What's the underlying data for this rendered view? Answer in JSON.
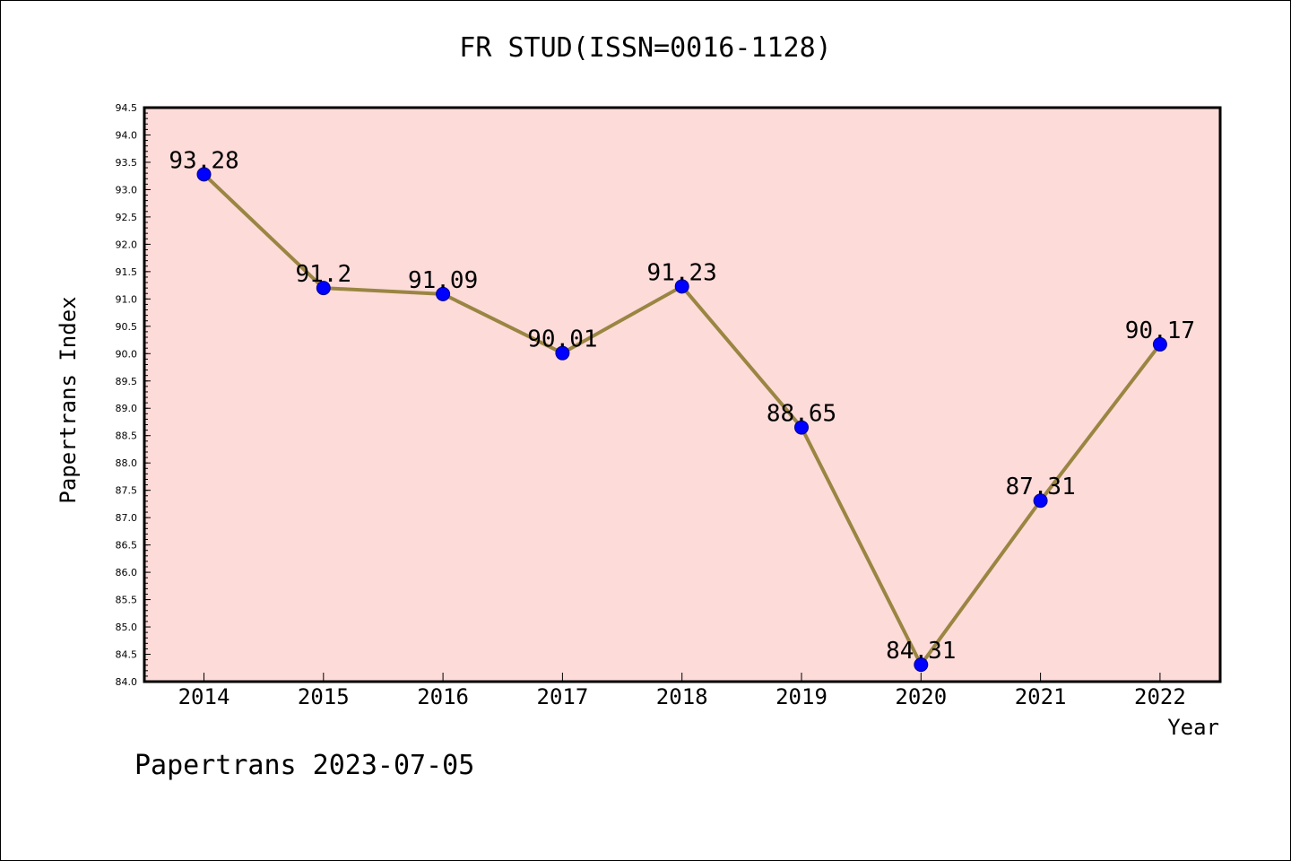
{
  "chart_data": {
    "type": "line",
    "title": "FR STUD(ISSN=0016-1128)",
    "xlabel": "Year",
    "ylabel": "Papertrans Index",
    "categories": [
      "2014",
      "2015",
      "2016",
      "2017",
      "2018",
      "2019",
      "2020",
      "2021",
      "2022"
    ],
    "series": [
      {
        "values": [
          93.28,
          91.2,
          91.09,
          90.01,
          91.23,
          88.65,
          84.31,
          87.31,
          90.17
        ],
        "labels": [
          "93.28",
          "91.2",
          "91.09",
          "90.01",
          "91.23",
          "88.65",
          "84.31",
          "87.31",
          "90.17"
        ]
      }
    ],
    "ylim": [
      84.0,
      94.5
    ],
    "yticks": [
      "84.0",
      "84.5",
      "85.0",
      "85.5",
      "86.0",
      "86.5",
      "87.0",
      "87.5",
      "88.0",
      "88.5",
      "89.0",
      "89.5",
      "90.0",
      "90.5",
      "91.0",
      "91.5",
      "92.0",
      "92.5",
      "93.0",
      "93.5",
      "94.0",
      "94.5"
    ],
    "grid": false,
    "colors": {
      "plot_background": "#fddbd9",
      "line": "#9a8542",
      "marker": "#0000ff"
    }
  },
  "footer": "Papertrans 2023-07-05"
}
